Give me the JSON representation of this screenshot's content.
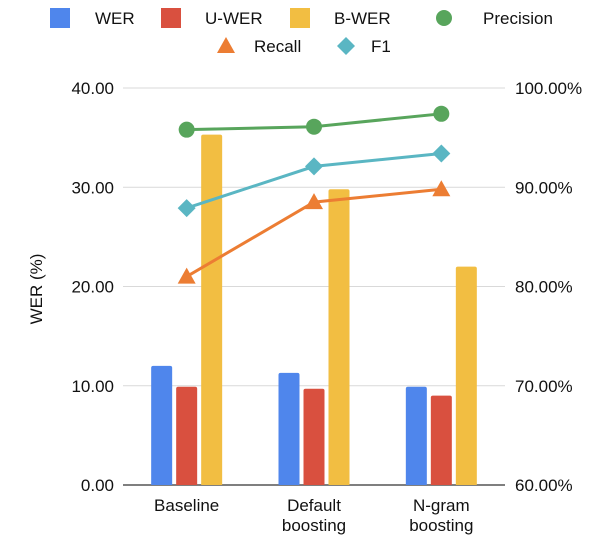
{
  "chart_data": {
    "type": "bar",
    "categories": [
      [
        "Baseline"
      ],
      [
        "Default",
        "boosting"
      ],
      [
        "N-gram",
        "boosting"
      ]
    ],
    "series": [
      {
        "name": "WER",
        "axis": "left",
        "kind": "bar",
        "color": "#4f86ec",
        "values": [
          12.0,
          11.3,
          9.9
        ]
      },
      {
        "name": "U-WER",
        "axis": "left",
        "kind": "bar",
        "color": "#d9503f",
        "values": [
          9.9,
          9.7,
          9.0
        ]
      },
      {
        "name": "B-WER",
        "axis": "left",
        "kind": "bar",
        "color": "#f2be42",
        "values": [
          35.3,
          29.8,
          22.0
        ]
      },
      {
        "name": "Precision",
        "axis": "right",
        "kind": "line",
        "marker": "circle",
        "color": "#58a55c",
        "values": [
          95.8,
          96.1,
          97.4
        ]
      },
      {
        "name": "Recall",
        "axis": "right",
        "kind": "line",
        "marker": "triangle",
        "color": "#ec7d33",
        "values": [
          81.0,
          88.5,
          89.8
        ]
      },
      {
        "name": "F1",
        "axis": "right",
        "kind": "line",
        "marker": "diamond",
        "color": "#5ab6c3",
        "values": [
          87.9,
          92.1,
          93.4
        ]
      }
    ],
    "left_axis": {
      "label": "WER (%)",
      "range": [
        0,
        40
      ],
      "ticks": [
        0,
        10,
        20,
        30,
        40
      ],
      "tick_labels": [
        "0.00",
        "10.00",
        "20.00",
        "30.00",
        "40.00"
      ]
    },
    "right_axis": {
      "label": "",
      "range": [
        60,
        100
      ],
      "ticks": [
        60,
        70,
        80,
        90,
        100
      ],
      "tick_labels": [
        "60.00%",
        "70.00%",
        "80.00%",
        "90.00%",
        "100.00%"
      ]
    },
    "grid": true,
    "legend_position": "top",
    "title": ""
  }
}
